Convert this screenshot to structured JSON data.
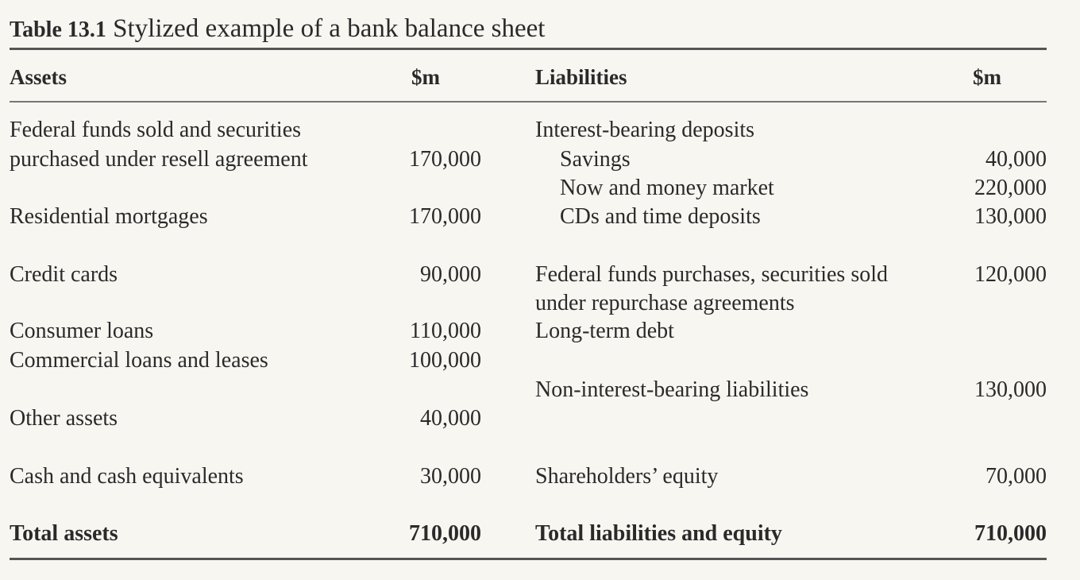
{
  "caption": {
    "label": "Table 13.1",
    "title": "Stylized example of a bank balance sheet"
  },
  "headers": {
    "assets": "Assets",
    "assets_unit": "$m",
    "liabilities": "Liabilities",
    "liabilities_unit": "$m"
  },
  "assets": [
    {
      "label_lines": [
        "Federal funds sold and securities",
        "purchased under resell agreement"
      ],
      "value": "170,000"
    },
    {
      "label": "Residential mortgages",
      "value": "170,000"
    },
    {
      "label": "Credit cards",
      "value": "90,000"
    },
    {
      "label": "Consumer loans",
      "value": "110,000"
    },
    {
      "label": "Commercial loans and leases",
      "value": "100,000"
    },
    {
      "label": "Other assets",
      "value": "40,000"
    },
    {
      "label": "Cash and cash equivalents",
      "value": "30,000"
    }
  ],
  "liabilities": {
    "interest_bearing": {
      "label": "Interest-bearing deposits",
      "items": [
        {
          "label": "Savings",
          "value": "40,000"
        },
        {
          "label": "Now and money market",
          "value": "220,000"
        },
        {
          "label": "CDs and time deposits",
          "value": "130,000"
        }
      ]
    },
    "fed_funds": {
      "label_lines": [
        "Federal funds purchases, securities sold",
        "under repurchase agreements"
      ],
      "value": "120,000"
    },
    "long_term_debt": {
      "label": "Long-term debt"
    },
    "non_interest": {
      "label": "Non-interest-bearing liabilities",
      "value": "130,000"
    },
    "equity": {
      "label": "Shareholders’ equity",
      "value": "70,000"
    }
  },
  "totals": {
    "assets_label": "Total assets",
    "assets_value": "710,000",
    "liabilities_label": "Total liabilities and equity",
    "liabilities_value": "710,000"
  }
}
